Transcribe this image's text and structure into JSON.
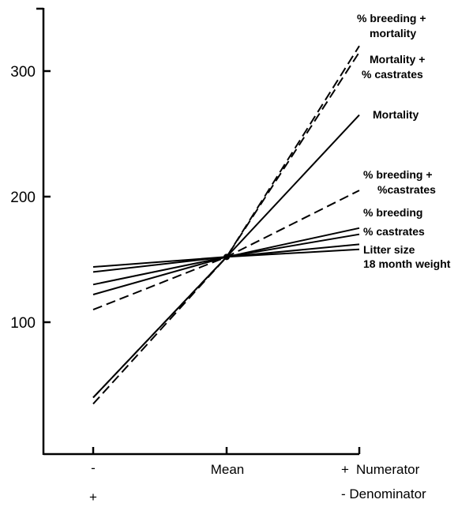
{
  "chart_data": {
    "type": "line",
    "title": "",
    "xlabel": "",
    "ylabel": "",
    "categories": [
      "-",
      "Mean",
      "+"
    ],
    "category_markers": {
      "left_second_row": "+",
      "right_row1": "Numerator",
      "right_row2": "- Denominator"
    },
    "y_ticks": [
      100,
      200,
      300
    ],
    "ylim": [
      0,
      350
    ],
    "series": [
      {
        "name": "% breeding + mortality",
        "style": "dashed",
        "values": [
          35,
          152,
          320
        ]
      },
      {
        "name": "Mortality + % castrates",
        "style": "dashed",
        "values": [
          40,
          152,
          315
        ]
      },
      {
        "name": "Mortality",
        "style": "solid",
        "values": [
          40,
          152,
          265
        ]
      },
      {
        "name": "% breeding + %castrates",
        "style": "dashed",
        "values": [
          110,
          152,
          205
        ]
      },
      {
        "name": "% breeding",
        "style": "solid",
        "values": [
          122,
          152,
          175
        ]
      },
      {
        "name": "% castrates",
        "style": "solid",
        "values": [
          130,
          152,
          170
        ]
      },
      {
        "name": "Litter size",
        "style": "solid",
        "values": [
          140,
          152,
          162
        ]
      },
      {
        "name": "18 month weight",
        "style": "solid",
        "values": [
          144,
          152,
          158
        ]
      }
    ],
    "labels": [
      {
        "lines": [
          "% breeding +",
          "mortality"
        ]
      },
      {
        "lines": [
          "Mortality +",
          "% castrates"
        ]
      },
      {
        "lines": [
          "Mortality"
        ]
      },
      {
        "lines": [
          "% breeding +",
          "%castrates"
        ]
      },
      {
        "lines": [
          "% breeding"
        ]
      },
      {
        "lines": [
          "% castrates"
        ]
      },
      {
        "lines": [
          "Litter size",
          "18 month weight"
        ]
      }
    ],
    "grid": false,
    "legend": "none"
  }
}
